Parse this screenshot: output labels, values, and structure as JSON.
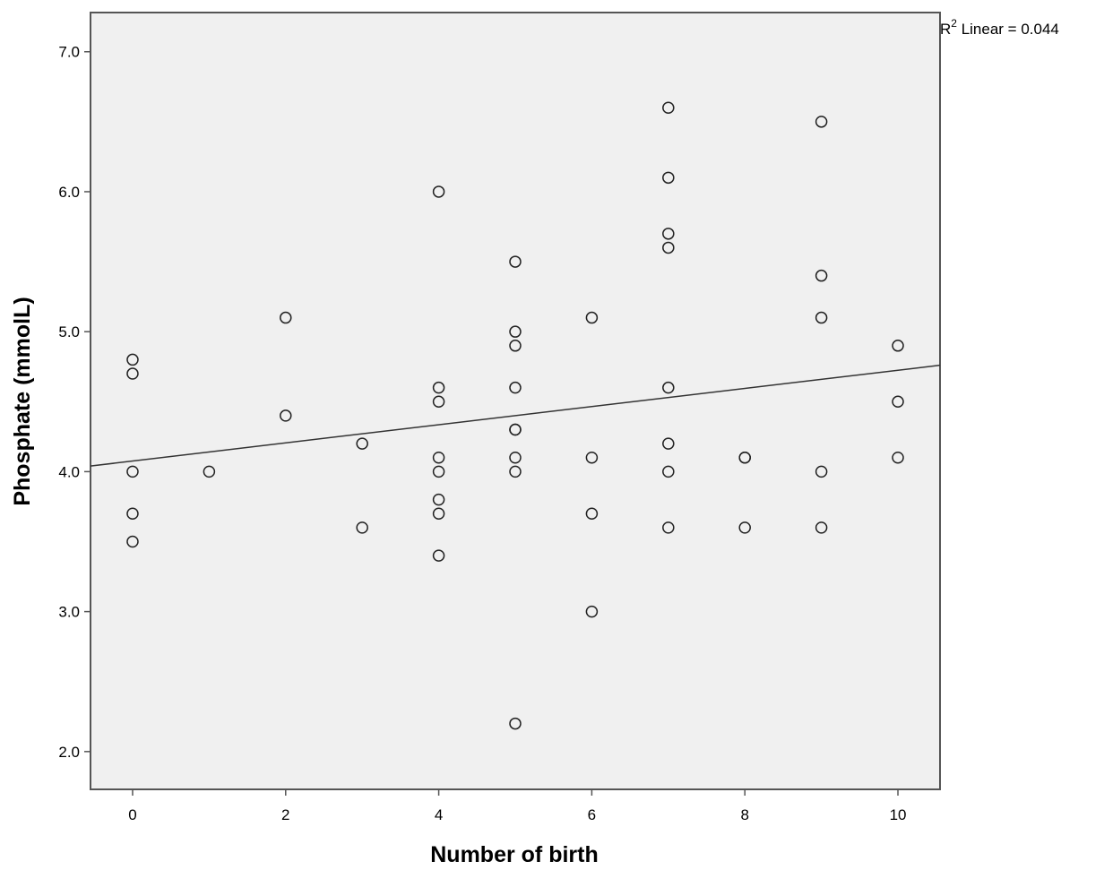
{
  "chart_data": {
    "type": "scatter",
    "title": "",
    "xlabel": "Number of birth",
    "ylabel": "Phosphate (mmolL)",
    "xlim": [
      -0.55,
      10.55
    ],
    "ylim": [
      1.73,
      7.28
    ],
    "xticks": [
      0,
      2,
      4,
      6,
      8,
      10
    ],
    "xtick_labels": [
      "0",
      "2",
      "4",
      "6",
      "8",
      "10"
    ],
    "yticks": [
      2.0,
      3.0,
      4.0,
      5.0,
      6.0,
      7.0
    ],
    "ytick_labels": [
      "2.0",
      "3.0",
      "4.0",
      "5.0",
      "6.0",
      "7.0"
    ],
    "grid": false,
    "plot_background": "#f0f0f0",
    "marker": "open-circle",
    "series": [
      {
        "points": [
          {
            "x": 0,
            "y": 4.8
          },
          {
            "x": 0,
            "y": 4.7
          },
          {
            "x": 0,
            "y": 4.0
          },
          {
            "x": 0,
            "y": 3.7
          },
          {
            "x": 0,
            "y": 3.5
          },
          {
            "x": 1,
            "y": 4.0
          },
          {
            "x": 2,
            "y": 5.1
          },
          {
            "x": 2,
            "y": 4.4
          },
          {
            "x": 3,
            "y": 4.2
          },
          {
            "x": 3,
            "y": 3.6
          },
          {
            "x": 4,
            "y": 6.0
          },
          {
            "x": 4,
            "y": 4.6
          },
          {
            "x": 4,
            "y": 4.5
          },
          {
            "x": 4,
            "y": 4.1
          },
          {
            "x": 4,
            "y": 4.0
          },
          {
            "x": 4,
            "y": 3.8
          },
          {
            "x": 4,
            "y": 3.7
          },
          {
            "x": 4,
            "y": 3.4
          },
          {
            "x": 5,
            "y": 5.5
          },
          {
            "x": 5,
            "y": 5.0
          },
          {
            "x": 5,
            "y": 4.9
          },
          {
            "x": 5,
            "y": 4.6
          },
          {
            "x": 5,
            "y": 4.3
          },
          {
            "x": 5,
            "y": 4.3
          },
          {
            "x": 5,
            "y": 4.1
          },
          {
            "x": 5,
            "y": 4.0
          },
          {
            "x": 5,
            "y": 2.2
          },
          {
            "x": 6,
            "y": 5.1
          },
          {
            "x": 6,
            "y": 4.1
          },
          {
            "x": 6,
            "y": 3.7
          },
          {
            "x": 6,
            "y": 3.0
          },
          {
            "x": 7,
            "y": 6.6
          },
          {
            "x": 7,
            "y": 6.1
          },
          {
            "x": 7,
            "y": 5.7
          },
          {
            "x": 7,
            "y": 5.6
          },
          {
            "x": 7,
            "y": 4.6
          },
          {
            "x": 7,
            "y": 4.2
          },
          {
            "x": 7,
            "y": 4.0
          },
          {
            "x": 7,
            "y": 3.6
          },
          {
            "x": 8,
            "y": 4.1
          },
          {
            "x": 8,
            "y": 4.1
          },
          {
            "x": 8,
            "y": 3.6
          },
          {
            "x": 9,
            "y": 6.5
          },
          {
            "x": 9,
            "y": 5.4
          },
          {
            "x": 9,
            "y": 5.1
          },
          {
            "x": 9,
            "y": 4.0
          },
          {
            "x": 9,
            "y": 3.6
          },
          {
            "x": 10,
            "y": 4.9
          },
          {
            "x": 10,
            "y": 4.5
          },
          {
            "x": 10,
            "y": 4.1
          }
        ]
      }
    ],
    "fit_line": {
      "type": "linear",
      "x": [
        -0.55,
        10.55
      ],
      "y": [
        4.04,
        4.76
      ]
    },
    "annotation": {
      "r_label": "R",
      "r_superscript": "2",
      "text": " Linear = 0.044"
    }
  }
}
